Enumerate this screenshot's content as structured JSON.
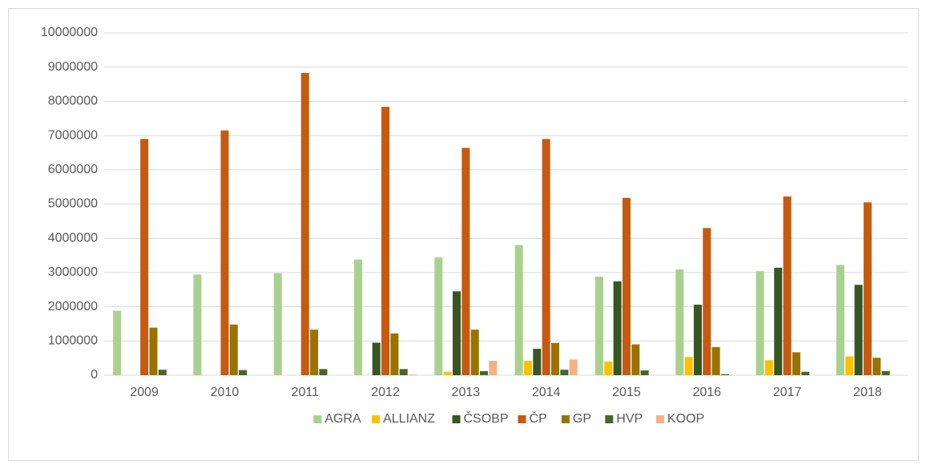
{
  "chart_data": {
    "type": "bar",
    "categories": [
      "2009",
      "2010",
      "2011",
      "2012",
      "2013",
      "2014",
      "2015",
      "2016",
      "2017",
      "2018"
    ],
    "series": [
      {
        "name": "AGRA",
        "color": "#a9d18e",
        "values": [
          1880000,
          2940000,
          2980000,
          3380000,
          3440000,
          3800000,
          2880000,
          3090000,
          3040000,
          3220000
        ]
      },
      {
        "name": "ALLIANZ",
        "color": "#ffc000",
        "values": [
          0,
          0,
          0,
          0,
          100000,
          420000,
          400000,
          530000,
          440000,
          550000
        ]
      },
      {
        "name": "ČSOBP",
        "color": "#375623",
        "values": [
          0,
          0,
          0,
          950000,
          2450000,
          770000,
          2740000,
          2060000,
          3140000,
          2640000
        ]
      },
      {
        "name": "ČP",
        "color": "#c55a11",
        "values": [
          6900000,
          7150000,
          8830000,
          7840000,
          6640000,
          6900000,
          5180000,
          4300000,
          5220000,
          5050000
        ]
      },
      {
        "name": "GP",
        "color": "#997300",
        "values": [
          1390000,
          1480000,
          1330000,
          1220000,
          1330000,
          940000,
          900000,
          820000,
          670000,
          510000
        ]
      },
      {
        "name": "HVP",
        "color": "#43682b",
        "values": [
          160000,
          150000,
          180000,
          180000,
          120000,
          160000,
          140000,
          30000,
          100000,
          120000
        ]
      },
      {
        "name": "KOOP",
        "color": "#f4b183",
        "values": [
          0,
          0,
          0,
          20000,
          420000,
          460000,
          0,
          0,
          0,
          0
        ]
      }
    ],
    "ylim": [
      0,
      10000000
    ],
    "yticks": [
      0,
      1000000,
      2000000,
      3000000,
      4000000,
      5000000,
      6000000,
      7000000,
      8000000,
      9000000,
      10000000
    ],
    "grid": true,
    "legend": "bottom"
  }
}
